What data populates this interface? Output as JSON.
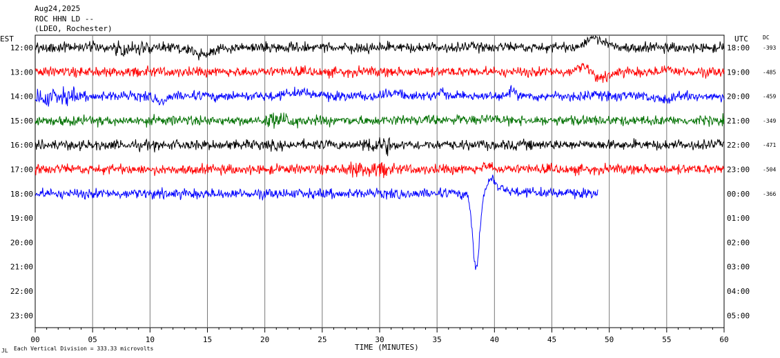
{
  "header": {
    "date": "Aug24,2025",
    "station": "ROC HHN LD --",
    "network": "(LDEO, Rochester)"
  },
  "labels": {
    "left_tz": "EST",
    "right_tz": "UTC",
    "dc": "DC",
    "xlabel": "TIME (MINUTES)",
    "footer_mark": "JL",
    "footer_note": "Each Vertical Division =  333.33 microvolts"
  },
  "chart_data": {
    "type": "line",
    "title": "ROC HHN LD --",
    "xlabel": "TIME (MINUTES)",
    "xlim": [
      0,
      60
    ],
    "x_ticks": [
      "00",
      "05",
      "10",
      "15",
      "20",
      "25",
      "30",
      "35",
      "40",
      "45",
      "50",
      "55",
      "60"
    ],
    "rows_est": [
      "12:00",
      "13:00",
      "14:00",
      "15:00",
      "16:00",
      "17:00",
      "18:00",
      "19:00",
      "20:00",
      "21:00",
      "22:00",
      "23:00"
    ],
    "rows_utc": [
      "18:00",
      "19:00",
      "20:00",
      "21:00",
      "22:00",
      "23:00",
      "00:00",
      "01:00",
      "02:00",
      "03:00",
      "04:00",
      "05:00"
    ],
    "dc_offsets": [
      "-393",
      "-485",
      "-459",
      "-349",
      "-471",
      "-504",
      "-366"
    ],
    "trace_colors": [
      "#000000",
      "#ff0000",
      "#0000ff",
      "#007000",
      "#000000",
      "#ff0000",
      "#0000ff"
    ],
    "trace_end_minute": 49,
    "grid": true
  }
}
